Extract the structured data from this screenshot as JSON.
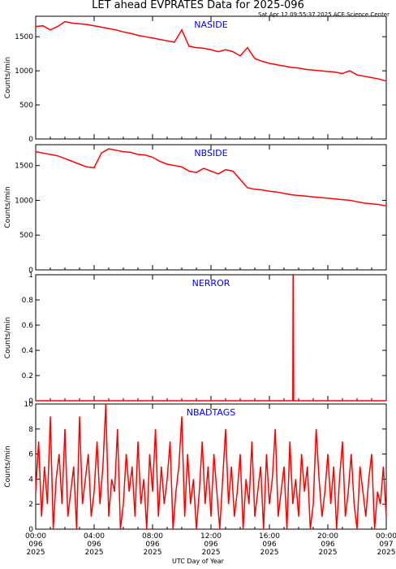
{
  "title": "LET ahead EVPRATES Data for 2025-096",
  "timestamp": "Sat Apr 12 09:55:37 2025 ACE Science Center",
  "xlabel": "UTC Day of Year",
  "colors": {
    "series": "#ff0000",
    "panel_label": "#0000ff",
    "axes": "#000000"
  },
  "x_ticks": [
    {
      "time": "00:00",
      "doy": "096",
      "year": "2025"
    },
    {
      "time": "04:00",
      "doy": "096",
      "year": "2025"
    },
    {
      "time": "08:00",
      "doy": "096",
      "year": "2025"
    },
    {
      "time": "12:00",
      "doy": "096",
      "year": "2025"
    },
    {
      "time": "16:00",
      "doy": "096",
      "year": "2025"
    },
    {
      "time": "20:00",
      "doy": "096",
      "year": "2025"
    },
    {
      "time": "00:00",
      "doy": "097",
      "year": "2025"
    }
  ],
  "chart_data": [
    {
      "type": "line",
      "label": "NASIDE",
      "ylabel": "Counts/min",
      "xlim_hours": [
        0,
        24
      ],
      "ylim": [
        0,
        1800
      ],
      "yticks": [
        0,
        500,
        1000,
        1500
      ],
      "series": [
        {
          "x": [
            0,
            0.5,
            1,
            1.5,
            2,
            2.5,
            3,
            3.5,
            4,
            4.5,
            5,
            5.5,
            6,
            6.5,
            7,
            7.5,
            8,
            8.5,
            9,
            9.5,
            10,
            10.5,
            11,
            11.5,
            12,
            12.5,
            13,
            13.5,
            14,
            14.5,
            15,
            15.5,
            16,
            16.5,
            17,
            17.5,
            18,
            18.5,
            19,
            19.5,
            20,
            20.5,
            21,
            21.5,
            22,
            22.5,
            23,
            23.5,
            24
          ],
          "y": [
            1650,
            1660,
            1600,
            1650,
            1720,
            1700,
            1690,
            1680,
            1660,
            1640,
            1620,
            1600,
            1570,
            1550,
            1520,
            1500,
            1480,
            1460,
            1440,
            1420,
            1600,
            1360,
            1340,
            1330,
            1310,
            1280,
            1310,
            1280,
            1220,
            1340,
            1180,
            1140,
            1110,
            1090,
            1070,
            1050,
            1040,
            1020,
            1010,
            1000,
            990,
            980,
            960,
            1000,
            940,
            920,
            900,
            880,
            850
          ]
        }
      ]
    },
    {
      "type": "line",
      "label": "NBSIDE",
      "ylabel": "Counts/min",
      "xlim_hours": [
        0,
        24
      ],
      "ylim": [
        0,
        1800
      ],
      "yticks": [
        0,
        500,
        1000,
        1500
      ],
      "series": [
        {
          "x": [
            0,
            0.5,
            1,
            1.5,
            2,
            2.5,
            3,
            3.5,
            4,
            4.5,
            5,
            5.5,
            6,
            6.5,
            7,
            7.5,
            8,
            8.5,
            9,
            9.5,
            10,
            10.5,
            11,
            11.5,
            12,
            12.5,
            13,
            13.5,
            14,
            14.5,
            15,
            15.5,
            16,
            16.5,
            17,
            17.5,
            18,
            18.5,
            19,
            19.5,
            20,
            20.5,
            21,
            21.5,
            22,
            22.5,
            23,
            23.5,
            24
          ],
          "y": [
            1700,
            1680,
            1660,
            1640,
            1600,
            1560,
            1520,
            1480,
            1470,
            1680,
            1740,
            1720,
            1700,
            1690,
            1660,
            1650,
            1620,
            1560,
            1520,
            1500,
            1480,
            1420,
            1400,
            1460,
            1420,
            1380,
            1440,
            1420,
            1300,
            1180,
            1160,
            1150,
            1130,
            1120,
            1100,
            1080,
            1070,
            1060,
            1050,
            1040,
            1030,
            1020,
            1010,
            1000,
            980,
            960,
            950,
            940,
            920
          ]
        }
      ]
    },
    {
      "type": "line",
      "label": "NERROR",
      "ylabel": "Counts/min",
      "xlim_hours": [
        0,
        24
      ],
      "ylim": [
        0,
        1
      ],
      "yticks": [
        0,
        0.2,
        0.4,
        0.6,
        0.8,
        1.0
      ],
      "series": [
        {
          "x": [
            0,
            17.6,
            17.62,
            17.64,
            17.66,
            24
          ],
          "y": [
            0,
            0,
            1,
            1,
            0,
            0
          ]
        }
      ]
    },
    {
      "type": "line",
      "label": "NBADTAGS",
      "ylabel": "Counts/min",
      "xlim_hours": [
        0,
        24
      ],
      "ylim": [
        0,
        10
      ],
      "yticks": [
        0,
        2,
        4,
        6,
        8,
        10
      ],
      "series": [
        {
          "x": [
            0,
            0.2,
            0.4,
            0.6,
            0.8,
            1,
            1.2,
            1.4,
            1.6,
            1.8,
            2,
            2.2,
            2.4,
            2.6,
            2.8,
            3,
            3.2,
            3.4,
            3.6,
            3.8,
            4,
            4.2,
            4.4,
            4.6,
            4.8,
            5,
            5.2,
            5.4,
            5.6,
            5.8,
            6,
            6.2,
            6.4,
            6.6,
            6.8,
            7,
            7.2,
            7.4,
            7.6,
            7.8,
            8,
            8.2,
            8.4,
            8.6,
            8.8,
            9,
            9.2,
            9.4,
            9.6,
            9.8,
            10,
            10.2,
            10.4,
            10.6,
            10.8,
            11,
            11.2,
            11.4,
            11.6,
            11.8,
            12,
            12.2,
            12.4,
            12.6,
            12.8,
            13,
            13.2,
            13.4,
            13.6,
            13.8,
            14,
            14.2,
            14.4,
            14.6,
            14.8,
            15,
            15.2,
            15.4,
            15.6,
            15.8,
            16,
            16.2,
            16.4,
            16.6,
            16.8,
            17,
            17.2,
            17.4,
            17.6,
            17.8,
            18,
            18.2,
            18.4,
            18.6,
            18.8,
            19,
            19.2,
            19.4,
            19.6,
            19.8,
            20,
            20.2,
            20.4,
            20.6,
            20.8,
            21,
            21.2,
            21.4,
            21.6,
            21.8,
            22,
            22.2,
            22.4,
            22.6,
            22.8,
            23,
            23.2,
            23.4,
            23.6,
            23.8,
            24
          ],
          "y": [
            3,
            7,
            1,
            5,
            2,
            9,
            0,
            4,
            6,
            2,
            8,
            1,
            3,
            5,
            0,
            9,
            2,
            4,
            6,
            1,
            3,
            7,
            2,
            5,
            10,
            1,
            4,
            3,
            8,
            0,
            2,
            6,
            3,
            5,
            1,
            7,
            2,
            4,
            0,
            6,
            3,
            8,
            1,
            5,
            2,
            4,
            7,
            0,
            3,
            5,
            9,
            1,
            6,
            2,
            4,
            0,
            3,
            7,
            2,
            5,
            1,
            6,
            3,
            0,
            4,
            8,
            2,
            5,
            1,
            3,
            6,
            0,
            4,
            2,
            7,
            1,
            3,
            5,
            0,
            6,
            2,
            4,
            8,
            1,
            3,
            5,
            0,
            7,
            2,
            4,
            1,
            6,
            3,
            5,
            0,
            2,
            8,
            4,
            1,
            3,
            6,
            2,
            5,
            0,
            4,
            7,
            1,
            3,
            6,
            2,
            0,
            5,
            3,
            1,
            4,
            6,
            0,
            3,
            2,
            5,
            1
          ]
        }
      ]
    }
  ]
}
